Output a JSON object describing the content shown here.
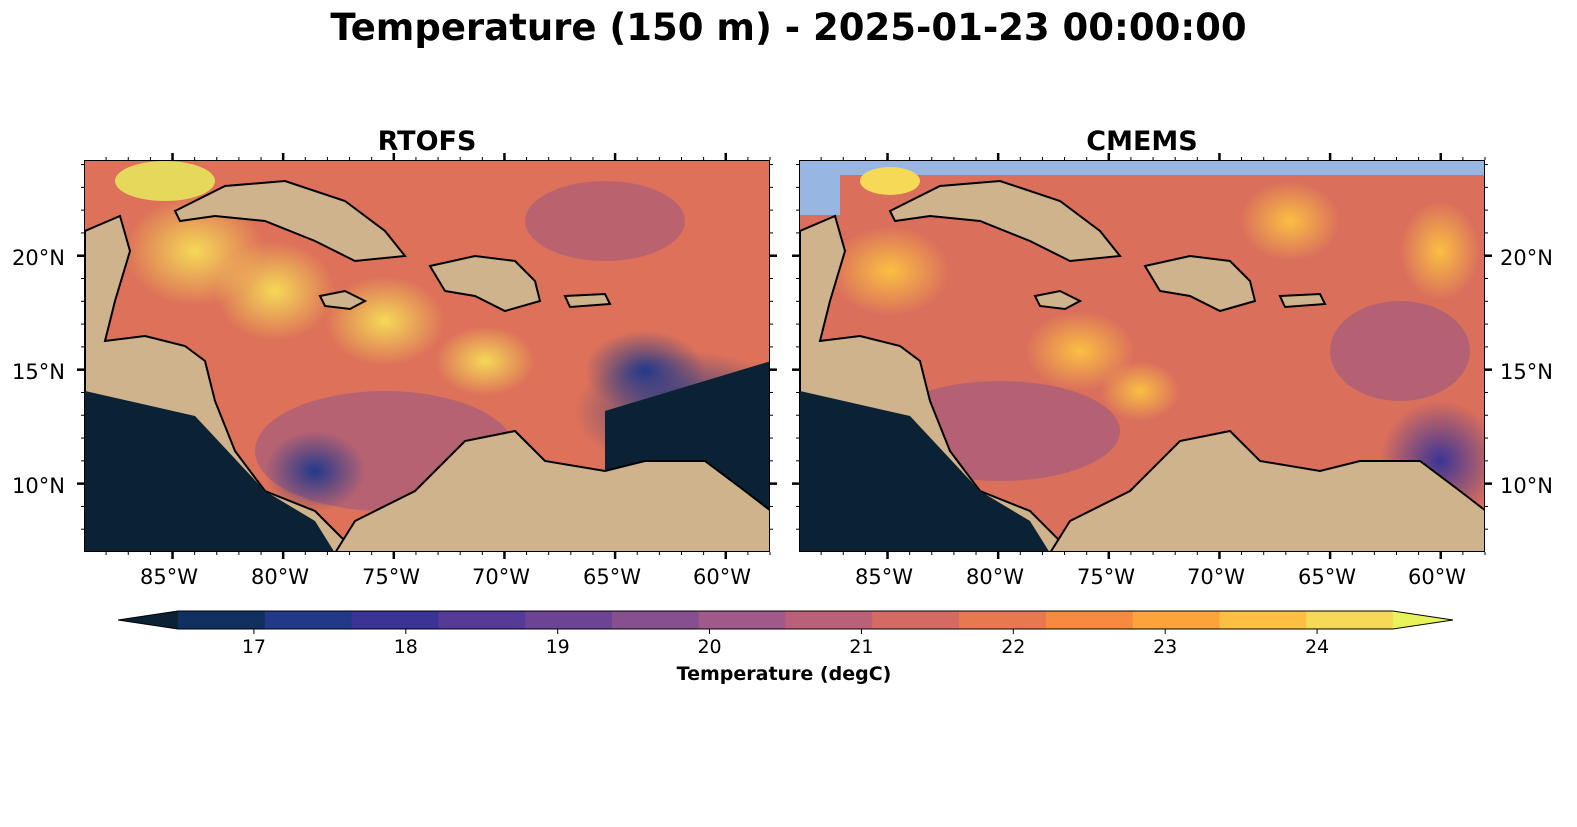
{
  "figure": {
    "title": "Temperature (150 m) - 2025-01-23 00:00:00"
  },
  "panels": [
    {
      "title": "RTOFS"
    },
    {
      "title": "CMEMS"
    }
  ],
  "axes": {
    "lon_ticks": [
      "85°W",
      "80°W",
      "75°W",
      "70°W",
      "65°W",
      "60°W"
    ],
    "lat_ticks": [
      "20°N",
      "15°N",
      "10°N"
    ],
    "lon_range": [
      -89,
      -58
    ],
    "lat_range": [
      7,
      24.2
    ]
  },
  "colorbar": {
    "label": "Temperature (degC)",
    "ticks": [
      "17",
      "18",
      "19",
      "20",
      "21",
      "22",
      "23",
      "24"
    ],
    "vmin": 16.5,
    "vmax": 24.5,
    "extend": "both",
    "colors": [
      "#0a2234",
      "#10315f",
      "#22398a",
      "#3b3496",
      "#553a97",
      "#6c4494",
      "#865090",
      "#a1598a",
      "#bb6079",
      "#d36b63",
      "#e87850",
      "#f68a3e",
      "#fca33c",
      "#fbbf43",
      "#f5d957",
      "#e8f35a"
    ]
  },
  "map_colors": {
    "ocean_fill": "#97b6e1",
    "land": "#cfb38c",
    "coastline": "#000000",
    "river": "#9bb7dc"
  }
}
